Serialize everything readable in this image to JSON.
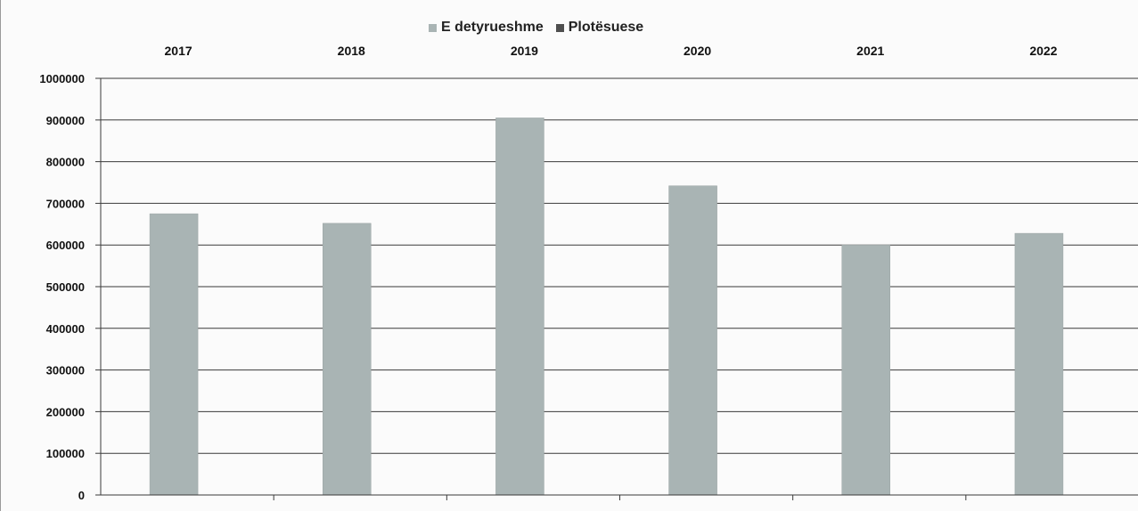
{
  "chart_data": {
    "type": "bar",
    "title": "",
    "xlabel": "",
    "ylabel": "",
    "categories": [
      "2017",
      "2018",
      "2019",
      "2020",
      "2021",
      "2022"
    ],
    "series": [
      {
        "name": "E detyrueshme",
        "values": [
          675000,
          652000,
          905000,
          742000,
          600000,
          628000
        ],
        "color": "#a9b4b4"
      },
      {
        "name": "Plotësuese",
        "values": [
          0,
          0,
          0,
          0,
          0,
          0
        ],
        "color": "#4f4f4f"
      }
    ],
    "ylim": [
      0,
      1000000
    ],
    "yticks": [
      "0",
      "100000",
      "200000",
      "300000",
      "400000",
      "500000",
      "600000",
      "700000",
      "800000",
      "900000",
      "1000000"
    ],
    "grid": true,
    "legend_position": "top-center",
    "category_axis_position": "top"
  }
}
